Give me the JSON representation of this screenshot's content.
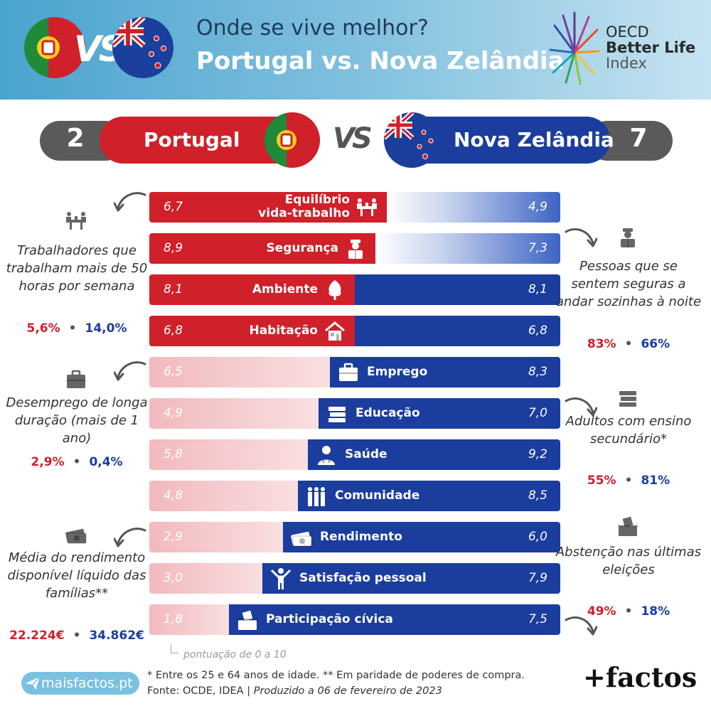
{
  "header": {
    "title_line1": "Onde se vive melhor?",
    "title_line2": "Portugal vs. Nova Zelândia",
    "vs_label": "VS",
    "oecd_line1": "OECD",
    "oecd_line2": "Better Life",
    "oecd_line3": "Index"
  },
  "scoreboard": {
    "pt_name": "Portugal",
    "nz_name": "Nova Zelândia",
    "pt_wins": "2",
    "nz_wins": "7",
    "vs_label": "VS"
  },
  "colors": {
    "pt_red": "#d0202a",
    "pt_light": "#f2b9bd",
    "nz_blue": "#1a3d9e",
    "nz_light": "#c8d4ee",
    "header_blue": "#4aa3cf"
  },
  "chart_data": {
    "type": "bar",
    "subtype": "diverging-comparison",
    "categories": [
      "Equilíbrio vida-trabalho",
      "Segurança",
      "Ambiente",
      "Habitação",
      "Emprego",
      "Educação",
      "Saúde",
      "Comunidade",
      "Rendimento",
      "Satisfação pessoal",
      "Participação cívica"
    ],
    "series": [
      {
        "name": "Portugal",
        "values": [
          6.7,
          8.9,
          8.1,
          6.8,
          6.5,
          4.9,
          5.8,
          4.8,
          2.9,
          3.0,
          1.8
        ]
      },
      {
        "name": "Nova Zelândia",
        "values": [
          4.9,
          7.3,
          8.1,
          6.8,
          8.3,
          7.0,
          9.2,
          8.5,
          6.0,
          7.9,
          7.5
        ]
      }
    ],
    "value_labels_pt": [
      "6,7",
      "8,9",
      "8,1",
      "6,8",
      "6,5",
      "4,9",
      "5,8",
      "4,8",
      "2,9",
      "3,0",
      "1,8"
    ],
    "value_labels_nz": [
      "4,9",
      "7,3",
      "8,1",
      "6,8",
      "8,3",
      "7,0",
      "9,2",
      "8,5",
      "6,0",
      "7,9",
      "7,5"
    ],
    "label_lines": [
      [
        "Equilíbrio",
        "vida-trabalho"
      ],
      [
        "Segurança"
      ],
      [
        "Ambiente"
      ],
      [
        "Habitação"
      ],
      [
        "Emprego"
      ],
      [
        "Educação"
      ],
      [
        "Saúde"
      ],
      [
        "Comunidade"
      ],
      [
        "Rendimento"
      ],
      [
        "Satisfação pessoal"
      ],
      [
        "Participação cívica"
      ]
    ],
    "icons": [
      "meeting-icon",
      "police-icon",
      "tree-icon",
      "house-icon",
      "briefcase-icon",
      "books-icon",
      "doctor-icon",
      "people-icon",
      "money-icon",
      "person-arms-up-icon",
      "ballot-box-icon"
    ],
    "scale_note": "pontuação de 0 a 10"
  },
  "side_notes": {
    "left": [
      {
        "text": "Trabalhadores que trabalham mais de 50 horas por semana",
        "pt": "5,6%",
        "nz": "14,0%",
        "icon": "meeting-icon"
      },
      {
        "text": "Desemprego de longa duração (mais de 1 ano)",
        "pt": "2,9%",
        "nz": "0,4%",
        "icon": "briefcase-icon"
      },
      {
        "text": "Média do rendimento disponível líquido das famílias**",
        "pt": "22.224€",
        "nz": "34.862€",
        "icon": "money-icon"
      }
    ],
    "right": [
      {
        "text": "Pessoas que se sentem seguras a andar sozinhas à noite",
        "pt": "83%",
        "nz": "66%",
        "icon": "police-icon"
      },
      {
        "text": "Adultos com ensino secundário*",
        "pt": "55%",
        "nz": "81%",
        "icon": "books-icon"
      },
      {
        "text": "Abstenção nas últimas eleições",
        "pt": "49%",
        "nz": "18%",
        "icon": "ballot-box-icon"
      }
    ],
    "separator": "•"
  },
  "footer": {
    "site": "maisfactos.pt",
    "note1": "* Entre os 25 e 64 anos de idade. ** Em paridade de poderes de compra.",
    "note2_prefix": "Fonte: OCDE, IDEA | ",
    "note2_italic": "Produzido a 06 de fevereiro de 2023",
    "brand": "+factos"
  }
}
